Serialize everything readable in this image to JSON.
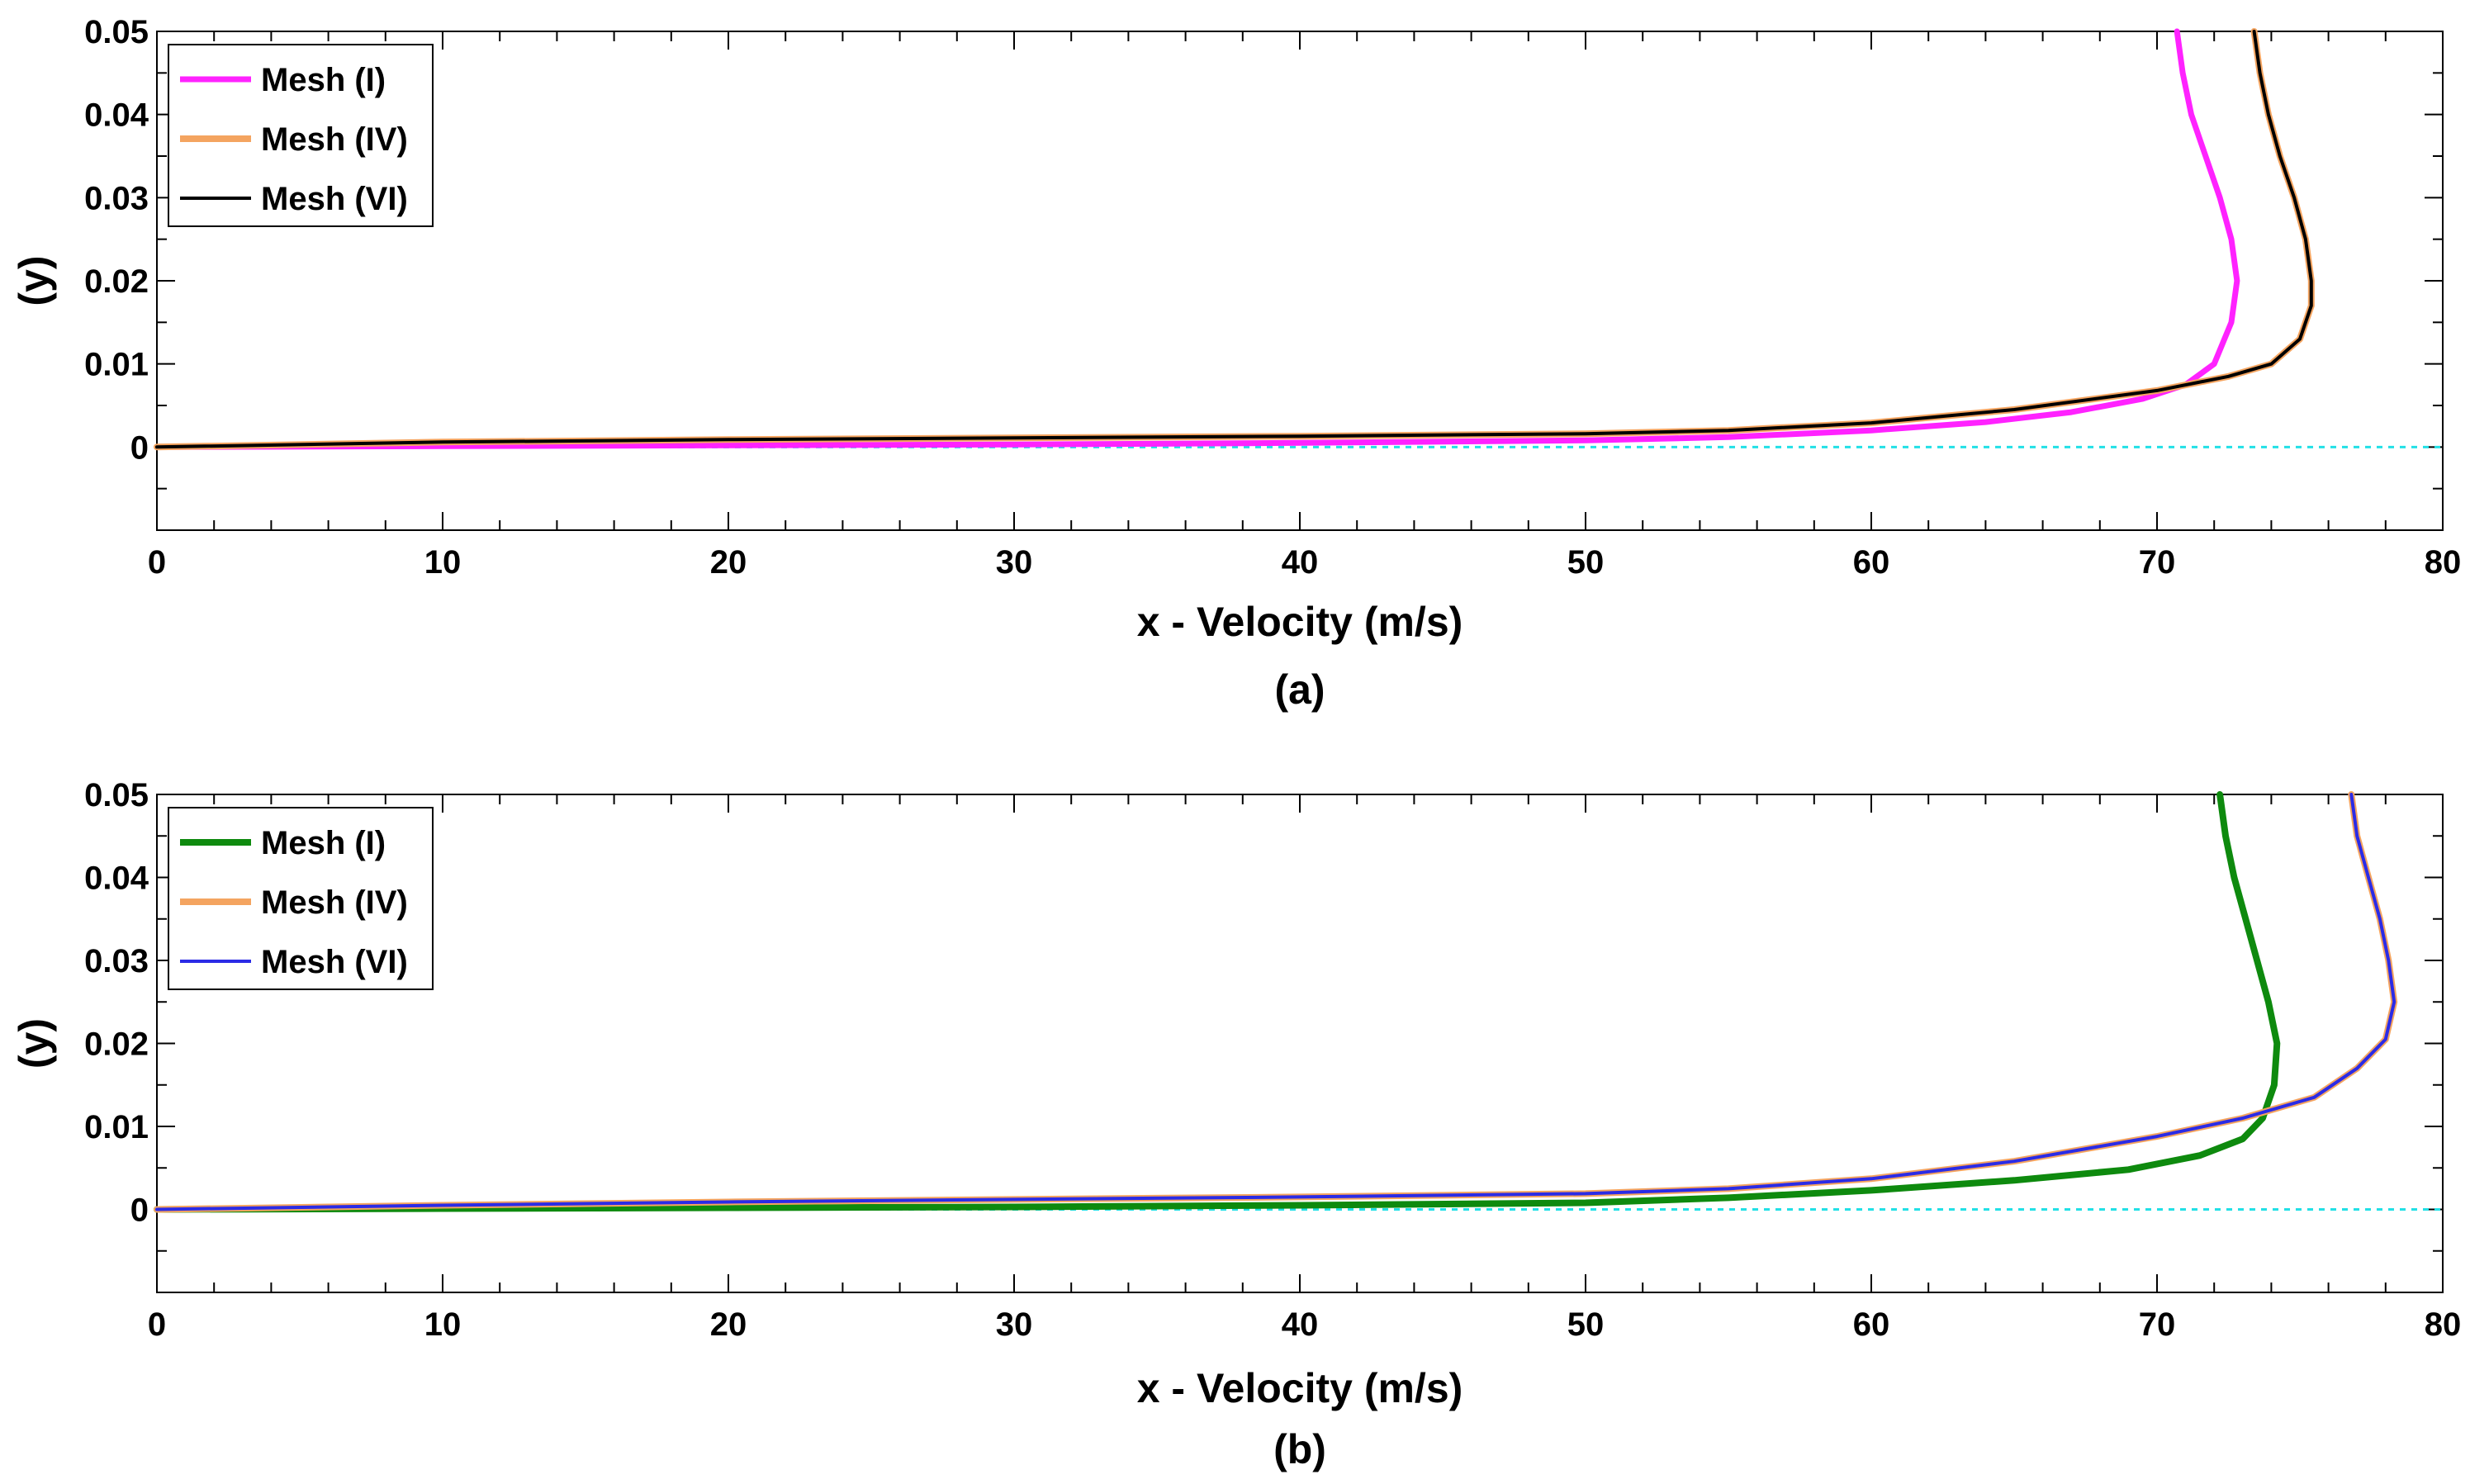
{
  "chart_data": [
    {
      "type": "line",
      "panel": "(a)",
      "caption": "(a)",
      "xlabel": "x - Velocity (m/s)",
      "ylabel": "(y)",
      "xlim": [
        0,
        80
      ],
      "ylim": [
        -0.01,
        0.05
      ],
      "xticks": [
        0,
        10,
        20,
        30,
        40,
        50,
        60,
        70,
        80
      ],
      "xtick_labels": [
        "0",
        "10",
        "20",
        "30",
        "40",
        "50",
        "60",
        "70",
        "80"
      ],
      "yticks": [
        0,
        0.01,
        0.02,
        0.03,
        0.04,
        0.05
      ],
      "ytick_labels": [
        "0",
        "0.01",
        "0.02",
        "0.03",
        "0.04",
        "0.05"
      ],
      "legend_position": "top-left",
      "reference_line": {
        "y": 0,
        "color": "#22e0e6",
        "style": "dotted"
      },
      "series": [
        {
          "name": "Mesh (I)",
          "label": "Mesh (I)",
          "color": "#ff22ff",
          "width": 7,
          "points": [
            [
              0,
              0
            ],
            [
              10,
              0.0001
            ],
            [
              20,
              0.0002
            ],
            [
              30,
              0.0003
            ],
            [
              40,
              0.0005
            ],
            [
              50,
              0.0008
            ],
            [
              55,
              0.0012
            ],
            [
              60,
              0.002
            ],
            [
              64,
              0.003
            ],
            [
              67,
              0.0042
            ],
            [
              69.5,
              0.0058
            ],
            [
              71,
              0.0075
            ],
            [
              72,
              0.01
            ],
            [
              72.6,
              0.015
            ],
            [
              72.8,
              0.02
            ],
            [
              72.6,
              0.025
            ],
            [
              72.2,
              0.03
            ],
            [
              71.7,
              0.035
            ],
            [
              71.2,
              0.04
            ],
            [
              70.9,
              0.045
            ],
            [
              70.7,
              0.05
            ]
          ]
        },
        {
          "name": "Mesh (IV)",
          "label": "Mesh (IV)",
          "color": "#f4a460",
          "width": 8,
          "points": [
            [
              0,
              0
            ],
            [
              10,
              0.0006
            ],
            [
              20,
              0.0009
            ],
            [
              30,
              0.0011
            ],
            [
              40,
              0.0013
            ],
            [
              50,
              0.0016
            ],
            [
              55,
              0.002
            ],
            [
              60,
              0.0029
            ],
            [
              65,
              0.0045
            ],
            [
              70,
              0.0068
            ],
            [
              72.5,
              0.0085
            ],
            [
              74,
              0.01
            ],
            [
              75,
              0.013
            ],
            [
              75.4,
              0.017
            ],
            [
              75.4,
              0.02
            ],
            [
              75.2,
              0.025
            ],
            [
              74.8,
              0.03
            ],
            [
              74.3,
              0.035
            ],
            [
              73.9,
              0.04
            ],
            [
              73.6,
              0.045
            ],
            [
              73.4,
              0.05
            ]
          ]
        },
        {
          "name": "Mesh (VI)",
          "label": "Mesh (VI)",
          "color": "#000000",
          "width": 4,
          "points": [
            [
              0,
              0
            ],
            [
              10,
              0.0006
            ],
            [
              20,
              0.0009
            ],
            [
              30,
              0.0011
            ],
            [
              40,
              0.0013
            ],
            [
              50,
              0.0016
            ],
            [
              55,
              0.002
            ],
            [
              60,
              0.0029
            ],
            [
              65,
              0.0045
            ],
            [
              70,
              0.0068
            ],
            [
              72.5,
              0.0085
            ],
            [
              74,
              0.01
            ],
            [
              75,
              0.013
            ],
            [
              75.4,
              0.017
            ],
            [
              75.4,
              0.02
            ],
            [
              75.2,
              0.025
            ],
            [
              74.8,
              0.03
            ],
            [
              74.3,
              0.035
            ],
            [
              73.9,
              0.04
            ],
            [
              73.6,
              0.045
            ],
            [
              73.4,
              0.05
            ]
          ]
        }
      ]
    },
    {
      "type": "line",
      "panel": "(b)",
      "caption": "(b)",
      "xlabel": "x - Velocity (m/s)",
      "ylabel": "(y)",
      "xlim": [
        0,
        80
      ],
      "ylim": [
        -0.01,
        0.05
      ],
      "xticks": [
        0,
        10,
        20,
        30,
        40,
        50,
        60,
        70,
        80
      ],
      "xtick_labels": [
        "0",
        "10",
        "20",
        "30",
        "40",
        "50",
        "60",
        "70",
        "80"
      ],
      "yticks": [
        0,
        0.01,
        0.02,
        0.03,
        0.04,
        0.05
      ],
      "ytick_labels": [
        "0",
        "0.01",
        "0.02",
        "0.03",
        "0.04",
        "0.05"
      ],
      "legend_position": "top-left",
      "reference_line": {
        "y": 0,
        "color": "#22e0e6",
        "style": "dotted"
      },
      "series": [
        {
          "name": "Mesh (I)",
          "label": "Mesh (I)",
          "color": "#0e8a0e",
          "width": 8,
          "points": [
            [
              0,
              0
            ],
            [
              10,
              0.0001
            ],
            [
              20,
              0.0002
            ],
            [
              30,
              0.0003
            ],
            [
              40,
              0.0005
            ],
            [
              50,
              0.0008
            ],
            [
              55,
              0.0014
            ],
            [
              60,
              0.0023
            ],
            [
              65,
              0.0035
            ],
            [
              69,
              0.0048
            ],
            [
              71.5,
              0.0065
            ],
            [
              73,
              0.0085
            ],
            [
              73.7,
              0.011
            ],
            [
              74.1,
              0.015
            ],
            [
              74.2,
              0.02
            ],
            [
              73.9,
              0.025
            ],
            [
              73.5,
              0.03
            ],
            [
              73.1,
              0.035
            ],
            [
              72.7,
              0.04
            ],
            [
              72.4,
              0.045
            ],
            [
              72.2,
              0.05
            ]
          ]
        },
        {
          "name": "Mesh (IV)",
          "label": "Mesh (IV)",
          "color": "#f4a460",
          "width": 8,
          "points": [
            [
              0,
              0
            ],
            [
              10,
              0.0005
            ],
            [
              20,
              0.0009
            ],
            [
              30,
              0.0012
            ],
            [
              40,
              0.0015
            ],
            [
              50,
              0.0019
            ],
            [
              55,
              0.0025
            ],
            [
              60,
              0.0037
            ],
            [
              65,
              0.0058
            ],
            [
              70,
              0.0088
            ],
            [
              73,
              0.011
            ],
            [
              75.5,
              0.0135
            ],
            [
              77,
              0.017
            ],
            [
              78,
              0.0205
            ],
            [
              78.3,
              0.025
            ],
            [
              78.1,
              0.03
            ],
            [
              77.8,
              0.035
            ],
            [
              77.4,
              0.04
            ],
            [
              77,
              0.045
            ],
            [
              76.8,
              0.05
            ]
          ]
        },
        {
          "name": "Mesh (VI)",
          "label": "Mesh (VI)",
          "color": "#2b2be6",
          "width": 4,
          "points": [
            [
              0,
              0
            ],
            [
              10,
              0.0005
            ],
            [
              20,
              0.0009
            ],
            [
              30,
              0.0012
            ],
            [
              40,
              0.0015
            ],
            [
              50,
              0.0019
            ],
            [
              55,
              0.0025
            ],
            [
              60,
              0.0037
            ],
            [
              65,
              0.0058
            ],
            [
              70,
              0.0088
            ],
            [
              73,
              0.011
            ],
            [
              75.5,
              0.0135
            ],
            [
              77,
              0.017
            ],
            [
              78,
              0.0205
            ],
            [
              78.3,
              0.025
            ],
            [
              78.1,
              0.03
            ],
            [
              77.8,
              0.035
            ],
            [
              77.4,
              0.04
            ],
            [
              77,
              0.045
            ],
            [
              76.8,
              0.05
            ]
          ]
        }
      ]
    }
  ]
}
